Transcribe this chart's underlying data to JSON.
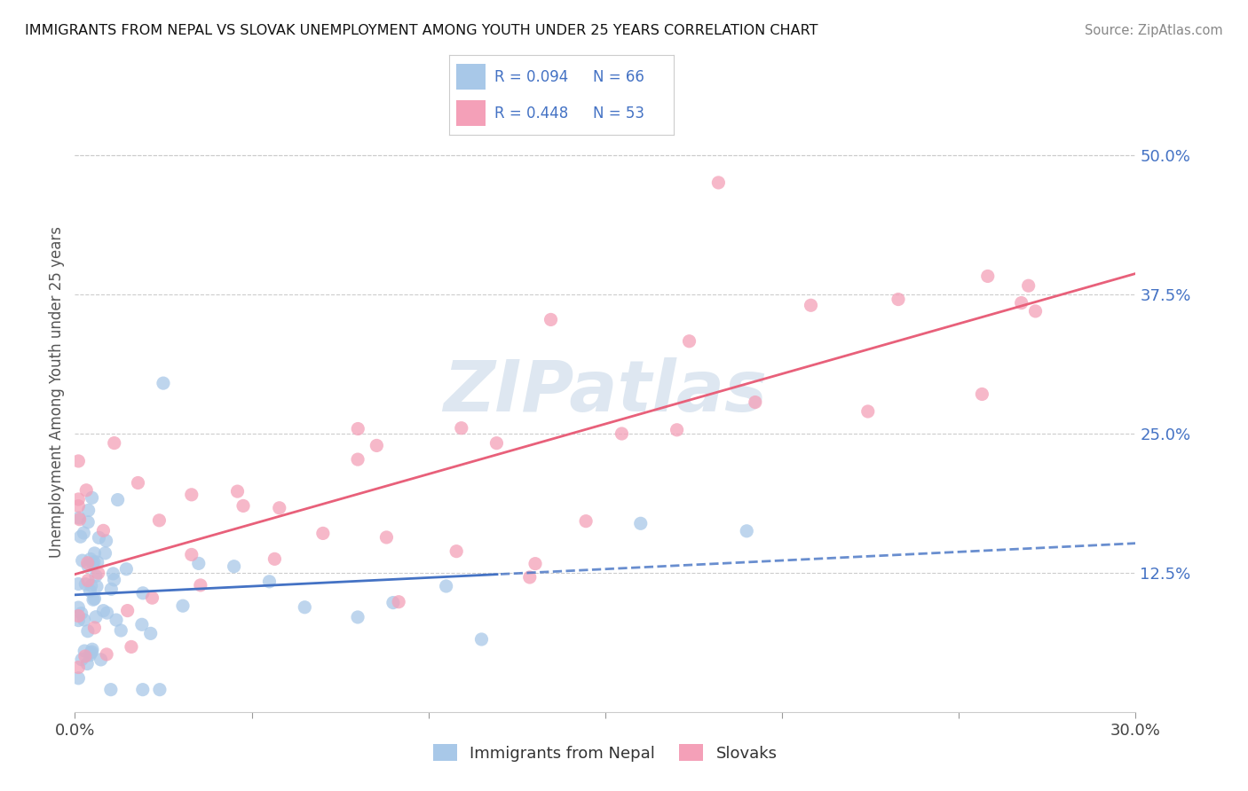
{
  "title": "IMMIGRANTS FROM NEPAL VS SLOVAK UNEMPLOYMENT AMONG YOUTH UNDER 25 YEARS CORRELATION CHART",
  "source": "Source: ZipAtlas.com",
  "ylabel": "Unemployment Among Youth under 25 years",
  "xlim": [
    0.0,
    0.3
  ],
  "ylim": [
    0.0,
    0.55
  ],
  "ytick_vals": [
    0.125,
    0.25,
    0.375,
    0.5
  ],
  "ytick_labels": [
    "12.5%",
    "25.0%",
    "37.5%",
    "50.0%"
  ],
  "xtick_vals": [
    0.0,
    0.05,
    0.1,
    0.15,
    0.2,
    0.25,
    0.3
  ],
  "color_nepal": "#a8c8e8",
  "color_slovak": "#f4a0b8",
  "line_color_nepal": "#4472c4",
  "line_color_slovak": "#e8607a",
  "watermark_color": "#c8d8e8",
  "legend_r1": "R = 0.094",
  "legend_n1": "N = 66",
  "legend_r2": "R = 0.448",
  "legend_n2": "N = 53"
}
